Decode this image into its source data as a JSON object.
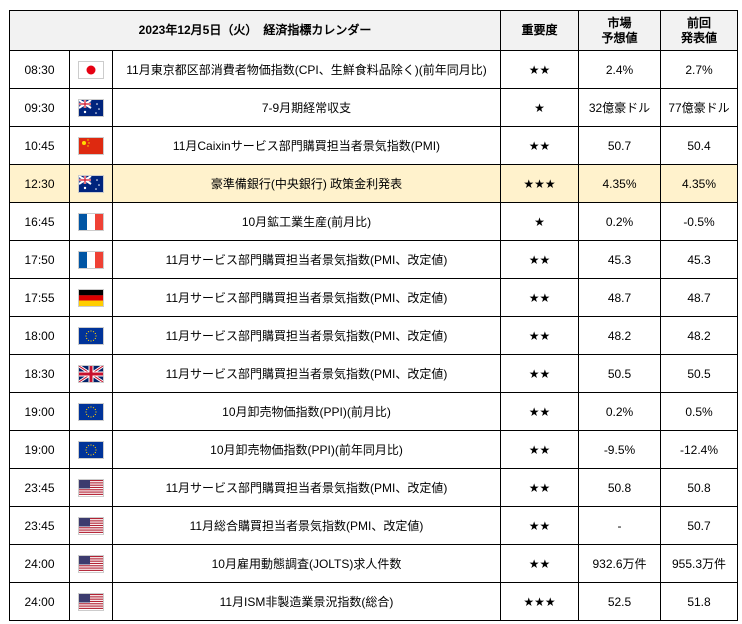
{
  "header": {
    "title": "2023年12月5日（火）　経済指標カレンダー",
    "importance": "重要度",
    "forecast_l1": "市場",
    "forecast_l2": "予想値",
    "previous_l1": "前回",
    "previous_l2": "発表値"
  },
  "highlight_color": "#fff2cc",
  "rows": [
    {
      "time": "08:30",
      "flag": "jp",
      "event": "11月東京都区部消費者物価指数(CPI、生鮮食料品除く)(前年同月比)",
      "importance": "★★",
      "forecast": "2.4%",
      "previous": "2.7%"
    },
    {
      "time": "09:30",
      "flag": "au",
      "event": "7-9月期経常収支",
      "importance": "★",
      "forecast": "32億豪ドル",
      "previous": "77億豪ドル"
    },
    {
      "time": "10:45",
      "flag": "cn",
      "event": "11月Caixinサービス部門購買担当者景気指数(PMI)",
      "importance": "★★",
      "forecast": "50.7",
      "previous": "50.4"
    },
    {
      "time": "12:30",
      "flag": "au",
      "event": "豪準備銀行(中央銀行) 政策金利発表",
      "importance": "★★★",
      "forecast": "4.35%",
      "previous": "4.35%",
      "highlight": true
    },
    {
      "time": "16:45",
      "flag": "fr",
      "event": "10月鉱工業生産(前月比)",
      "importance": "★",
      "forecast": "0.2%",
      "previous": "-0.5%"
    },
    {
      "time": "17:50",
      "flag": "fr",
      "event": "11月サービス部門購買担当者景気指数(PMI、改定値)",
      "importance": "★★",
      "forecast": "45.3",
      "previous": "45.3"
    },
    {
      "time": "17:55",
      "flag": "de",
      "event": "11月サービス部門購買担当者景気指数(PMI、改定値)",
      "importance": "★★",
      "forecast": "48.7",
      "previous": "48.7"
    },
    {
      "time": "18:00",
      "flag": "eu",
      "event": "11月サービス部門購買担当者景気指数(PMI、改定値)",
      "importance": "★★",
      "forecast": "48.2",
      "previous": "48.2"
    },
    {
      "time": "18:30",
      "flag": "gb",
      "event": "11月サービス部門購買担当者景気指数(PMI、改定値)",
      "importance": "★★",
      "forecast": "50.5",
      "previous": "50.5"
    },
    {
      "time": "19:00",
      "flag": "eu",
      "event": "10月卸売物価指数(PPI)(前月比)",
      "importance": "★★",
      "forecast": "0.2%",
      "previous": "0.5%"
    },
    {
      "time": "19:00",
      "flag": "eu",
      "event": "10月卸売物価指数(PPI)(前年同月比)",
      "importance": "★★",
      "forecast": "-9.5%",
      "previous": "-12.4%"
    },
    {
      "time": "23:45",
      "flag": "us",
      "event": "11月サービス部門購買担当者景気指数(PMI、改定値)",
      "importance": "★★",
      "forecast": "50.8",
      "previous": "50.8"
    },
    {
      "time": "23:45",
      "flag": "us",
      "event": "11月総合購買担当者景気指数(PMI、改定値)",
      "importance": "★★",
      "forecast": "-",
      "previous": "50.7"
    },
    {
      "time": "24:00",
      "flag": "us",
      "event": "10月雇用動態調査(JOLTS)求人件数",
      "importance": "★★",
      "forecast": "932.6万件",
      "previous": "955.3万件"
    },
    {
      "time": "24:00",
      "flag": "us",
      "event": "11月ISM非製造業景況指数(総合)",
      "importance": "★★★",
      "forecast": "52.5",
      "previous": "51.8"
    }
  ]
}
